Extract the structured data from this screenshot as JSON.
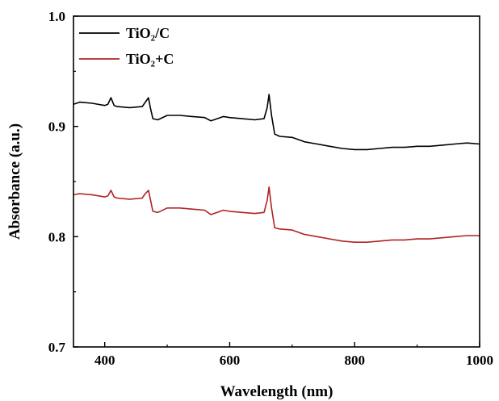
{
  "chart_data": {
    "type": "line",
    "title": "",
    "xlabel": "Wavelength (nm)",
    "ylabel": "Absorbance (a.u.)",
    "xlim": [
      350,
      1000
    ],
    "ylim": [
      0.7,
      1.0
    ],
    "x_ticks": [
      400,
      600,
      800,
      1000
    ],
    "x_tick_labels": [
      "400",
      "600",
      "800",
      "1000"
    ],
    "y_ticks": [
      0.7,
      0.8,
      0.9,
      1.0
    ],
    "y_tick_labels": [
      "0.7",
      "0.8",
      "0.9",
      "1.0"
    ],
    "grid": false,
    "legend_position": "top-left",
    "series": [
      {
        "name": "TiO₂/C",
        "color": "#000000",
        "x": [
          350,
          360,
          380,
          400,
          405,
          410,
          415,
          420,
          440,
          460,
          465,
          470,
          473,
          477,
          485,
          500,
          520,
          540,
          560,
          570,
          580,
          590,
          600,
          620,
          640,
          655,
          660,
          663,
          667,
          672,
          680,
          700,
          720,
          740,
          760,
          780,
          800,
          820,
          840,
          860,
          880,
          900,
          920,
          940,
          960,
          980,
          1000
        ],
        "values": [
          0.92,
          0.922,
          0.921,
          0.919,
          0.92,
          0.926,
          0.919,
          0.918,
          0.917,
          0.918,
          0.922,
          0.926,
          0.917,
          0.907,
          0.906,
          0.91,
          0.91,
          0.909,
          0.908,
          0.905,
          0.907,
          0.909,
          0.908,
          0.907,
          0.906,
          0.907,
          0.917,
          0.929,
          0.91,
          0.893,
          0.891,
          0.89,
          0.886,
          0.884,
          0.882,
          0.88,
          0.879,
          0.879,
          0.88,
          0.881,
          0.881,
          0.882,
          0.882,
          0.883,
          0.884,
          0.885,
          0.884
        ]
      },
      {
        "name": "TiO₂+C",
        "color": "#b22222",
        "x": [
          350,
          360,
          380,
          400,
          405,
          410,
          415,
          420,
          440,
          460,
          465,
          470,
          473,
          477,
          485,
          500,
          520,
          540,
          560,
          570,
          580,
          590,
          600,
          620,
          640,
          655,
          660,
          663,
          667,
          672,
          680,
          700,
          720,
          740,
          760,
          780,
          800,
          820,
          840,
          860,
          880,
          900,
          920,
          940,
          960,
          980,
          1000
        ],
        "values": [
          0.838,
          0.839,
          0.838,
          0.836,
          0.837,
          0.842,
          0.836,
          0.835,
          0.834,
          0.835,
          0.839,
          0.842,
          0.834,
          0.823,
          0.822,
          0.826,
          0.826,
          0.825,
          0.824,
          0.82,
          0.822,
          0.824,
          0.823,
          0.822,
          0.821,
          0.822,
          0.833,
          0.845,
          0.826,
          0.808,
          0.807,
          0.806,
          0.802,
          0.8,
          0.798,
          0.796,
          0.795,
          0.795,
          0.796,
          0.797,
          0.797,
          0.798,
          0.798,
          0.799,
          0.8,
          0.801,
          0.801
        ]
      }
    ]
  }
}
